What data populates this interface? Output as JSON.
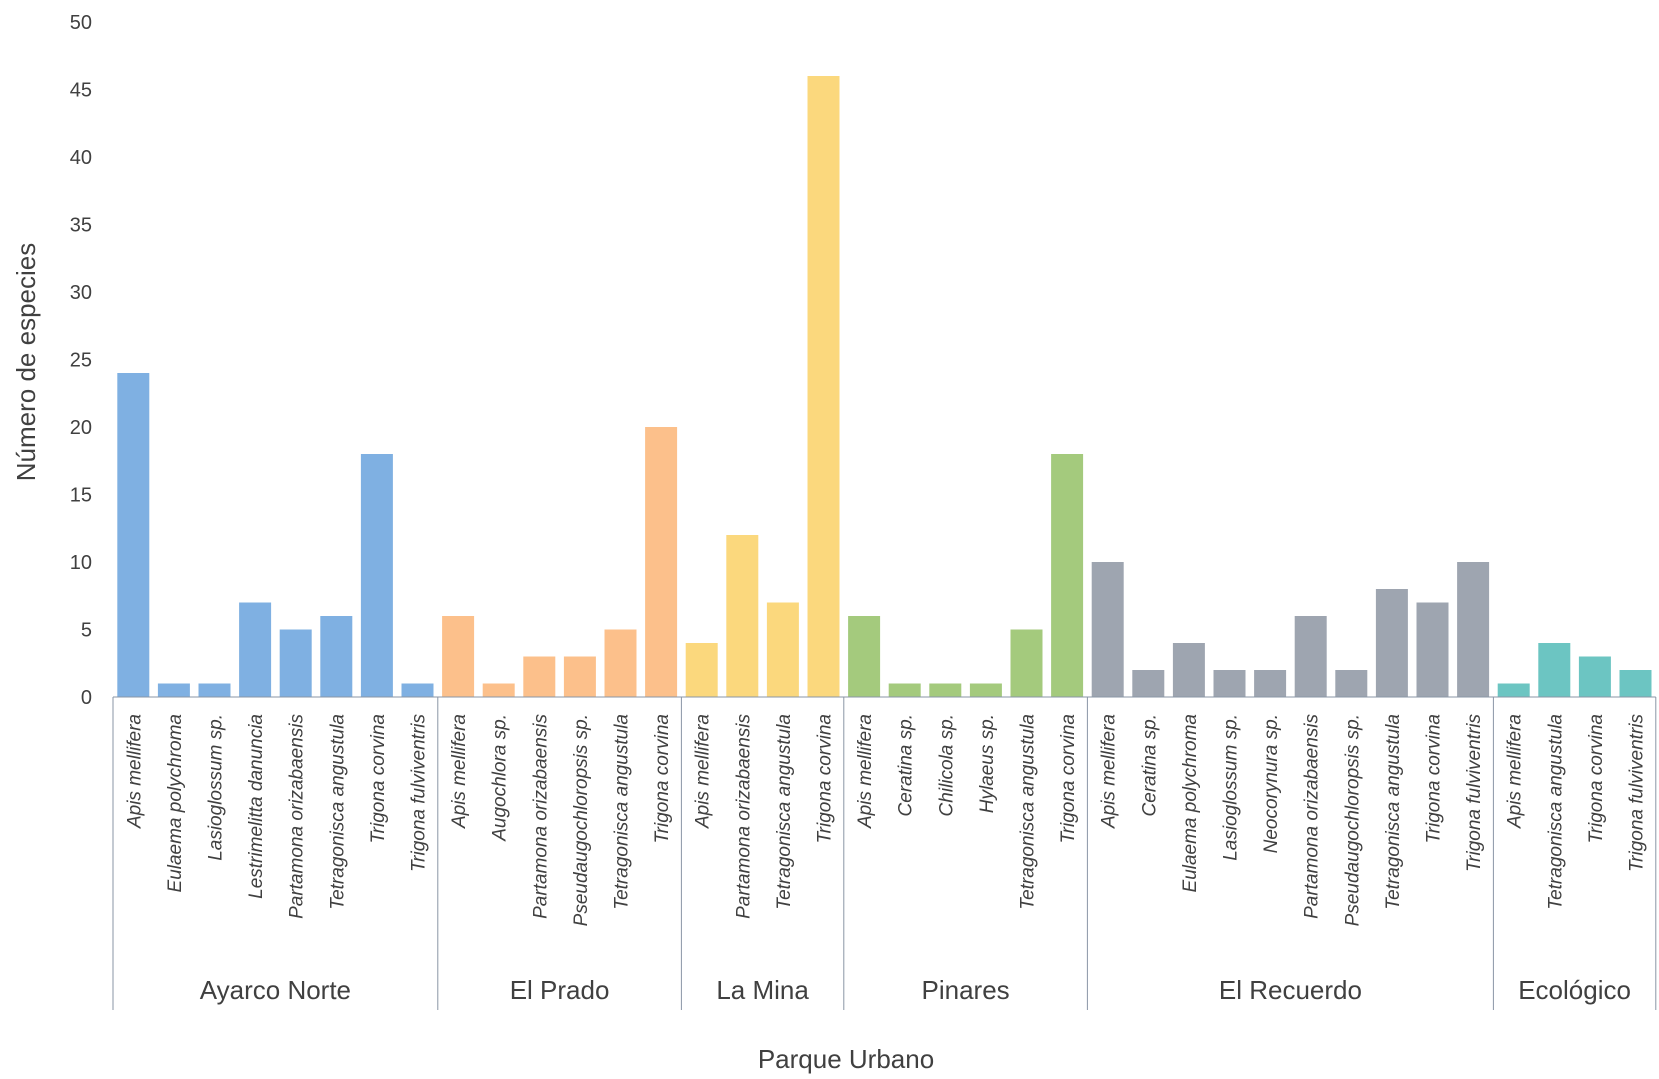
{
  "chart_data": {
    "type": "bar",
    "xlabel": "Parque Urbano",
    "ylabel": "Número de especies",
    "ylim": [
      0,
      50
    ],
    "yticks": [
      0,
      5,
      10,
      15,
      20,
      25,
      30,
      35,
      40,
      45,
      50
    ],
    "grid": false,
    "groups": [
      {
        "name": "Ayarco Norte",
        "color": "#7fb0e2",
        "categories": [
          "Apis mellifera",
          "Eulaema polychroma",
          "Lasioglossum sp.",
          "Lestrimelitta danuncia",
          "Partamona orizabaensis",
          "Tetragonisca angustula",
          "Trigona corvina",
          "Trigona fulviventris"
        ],
        "values": [
          24,
          1,
          1,
          7,
          5,
          6,
          18,
          1
        ]
      },
      {
        "name": "El Prado",
        "color": "#fcc08b",
        "categories": [
          "Apis mellifera",
          "Augochlora sp.",
          "Partamona orizabaensis",
          "Pseudaugochloropsis sp.",
          "Tetragonisca angustula",
          "Trigona corvina"
        ],
        "values": [
          6,
          1,
          3,
          3,
          5,
          20
        ]
      },
      {
        "name": "La Mina",
        "color": "#fbd87d",
        "categories": [
          "Apis mellifera",
          "Partamona orizabaensis",
          "Tetragonisca angustula",
          "Trigona corvina"
        ],
        "values": [
          4,
          12,
          7,
          46
        ]
      },
      {
        "name": "Pinares",
        "color": "#a4ca7d",
        "categories": [
          "Apis mellifera",
          "Ceratina sp.",
          "Chilicola sp.",
          "Hylaeus sp.",
          "Tetragonisca angustula",
          "Trigona corvina"
        ],
        "values": [
          6,
          1,
          1,
          1,
          5,
          18
        ]
      },
      {
        "name": "El Recuerdo",
        "color": "#9ea5b0",
        "categories": [
          "Apis mellifera",
          "Ceratina sp.",
          "Eulaema polychroma",
          "Lasioglossum sp.",
          "Neocorynura sp.",
          "Partamona orizabaensis",
          "Pseudaugochloropsis sp.",
          "Tetragonisca angustula",
          "Trigona corvina",
          "Trigona fulviventris"
        ],
        "values": [
          10,
          2,
          4,
          2,
          2,
          6,
          2,
          8,
          7,
          10
        ]
      },
      {
        "name": "Ecológico",
        "color": "#6cc5c2",
        "categories": [
          "Apis mellifera",
          "Tetragonisca angustula",
          "Trigona corvina",
          "Trigona fulviventris"
        ],
        "values": [
          1,
          4,
          3,
          2
        ]
      }
    ]
  }
}
